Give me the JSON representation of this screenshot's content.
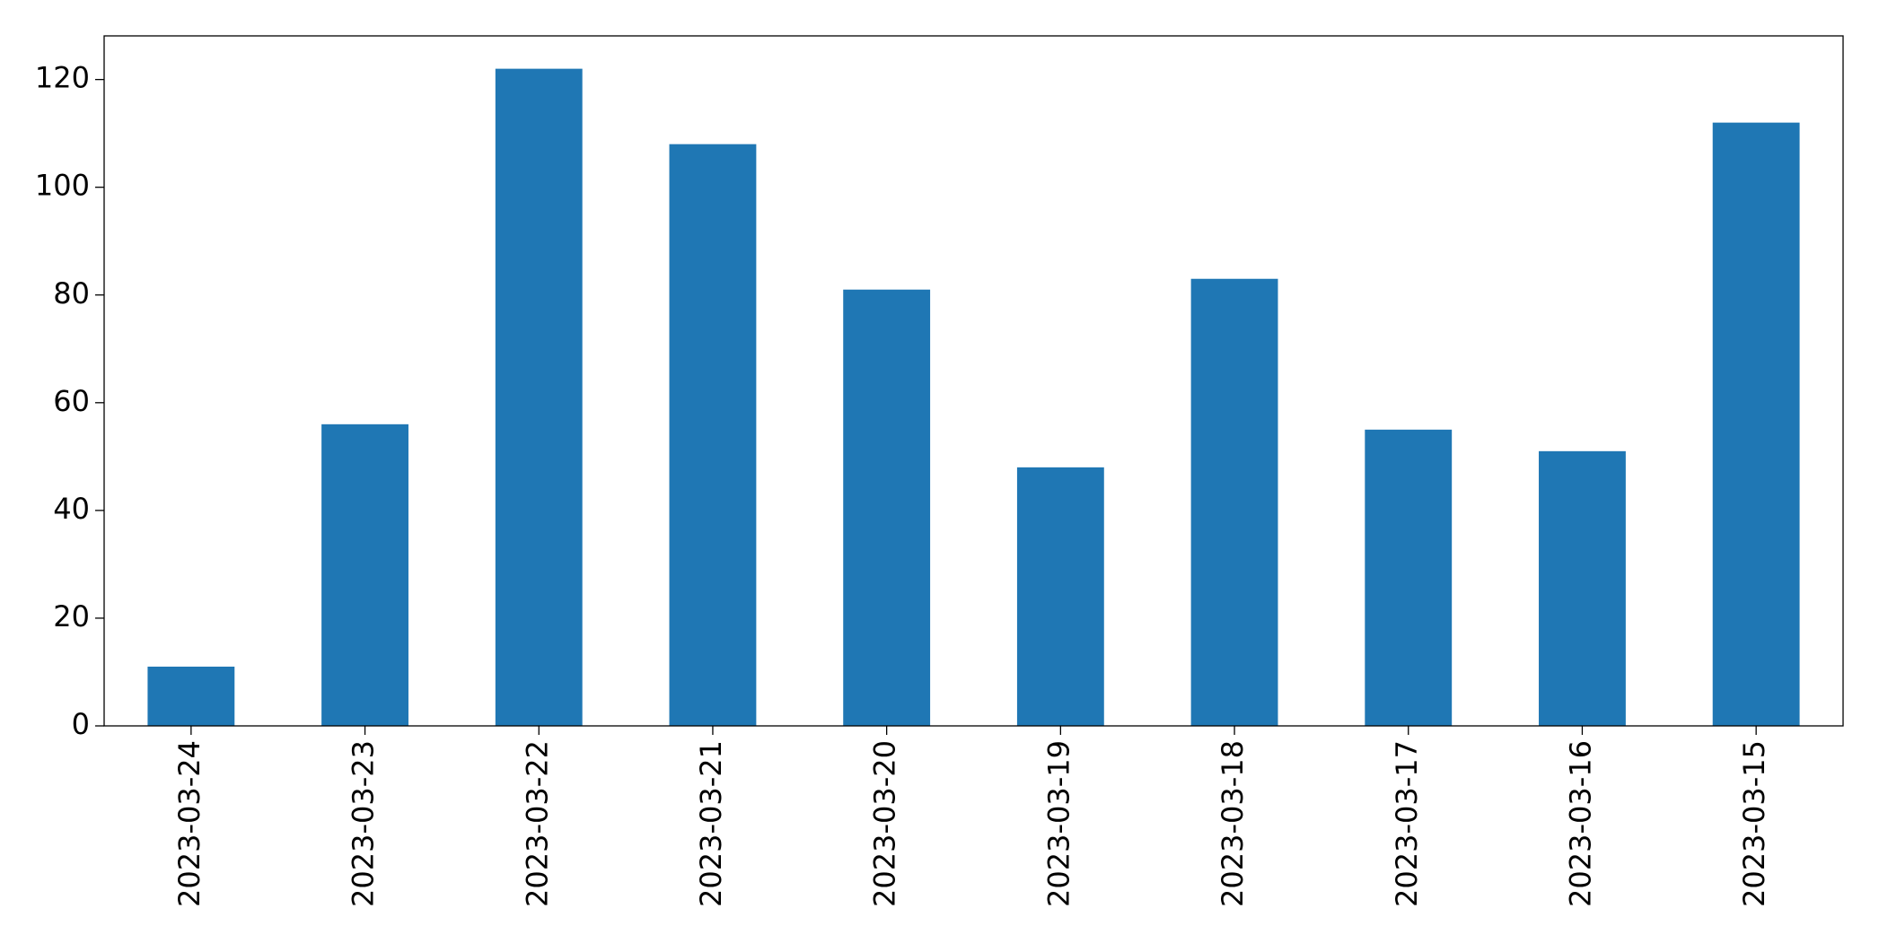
{
  "chart_data": {
    "type": "bar",
    "categories": [
      "2023-03-24",
      "2023-03-23",
      "2023-03-22",
      "2023-03-21",
      "2023-03-20",
      "2023-03-19",
      "2023-03-18",
      "2023-03-17",
      "2023-03-16",
      "2023-03-15"
    ],
    "values": [
      11,
      56,
      122,
      108,
      81,
      48,
      83,
      55,
      51,
      112
    ],
    "color": "#1f77b4",
    "ylim": [
      0,
      128.1
    ],
    "yticks": [
      0,
      20,
      40,
      60,
      80,
      100,
      120
    ],
    "grid": false
  }
}
